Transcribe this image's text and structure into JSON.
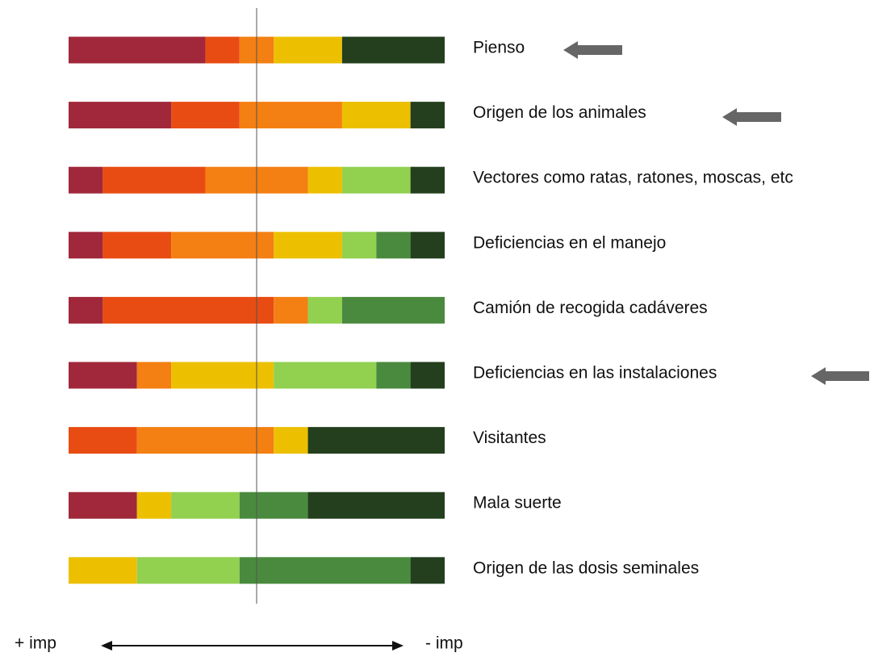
{
  "chart_data": {
    "type": "stacked-bar",
    "categories": [
      "Pienso",
      "Origen de los animales",
      "Vectores como ratas, ratones, moscas, etc",
      "Deficiencias en el manejo",
      "Camión de recogida cadáveres",
      "Deficiencias en las instalaciones",
      "Visitantes",
      "Mala suerte",
      "Origen de las dosis seminales"
    ],
    "series": [
      {
        "color": "#a0283a",
        "values": [
          4,
          3,
          1,
          1,
          1,
          2,
          0,
          2,
          0
        ]
      },
      {
        "color": "#e84c12",
        "values": [
          1,
          2,
          3,
          2,
          5,
          0,
          2,
          0,
          0
        ]
      },
      {
        "color": "#f47f13",
        "values": [
          1,
          3,
          3,
          3,
          1,
          1,
          4,
          0,
          0
        ]
      },
      {
        "color": "#ecc000",
        "values": [
          2,
          2,
          1,
          2,
          0,
          3,
          1,
          1,
          2
        ]
      },
      {
        "color": "#92d050",
        "values": [
          0,
          0,
          2,
          1,
          1,
          3,
          0,
          2,
          3
        ]
      },
      {
        "color": "#4a8a3e",
        "values": [
          0,
          0,
          0,
          1,
          3,
          1,
          0,
          2,
          5
        ]
      },
      {
        "color": "#233f1e",
        "values": [
          3,
          1,
          1,
          1,
          0,
          1,
          4,
          4,
          1
        ]
      }
    ],
    "xlim": [
      0,
      11
    ],
    "left_label": "+ imp",
    "right_label": "- imp"
  }
}
